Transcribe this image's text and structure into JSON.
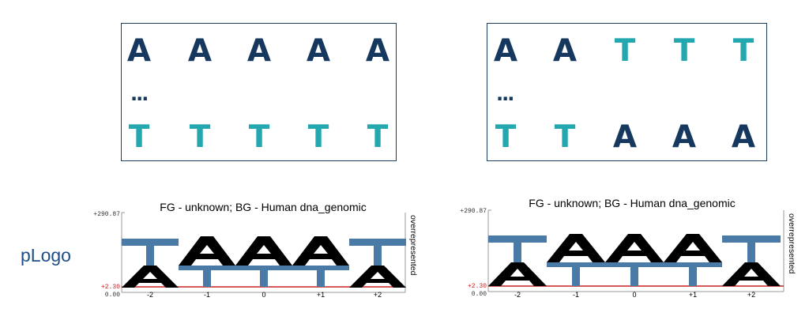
{
  "panels": [
    {
      "rows": [
        [
          "A",
          "A",
          "A",
          "A",
          "A"
        ],
        [
          "T",
          "T",
          "T",
          "T",
          "T"
        ]
      ],
      "ellipsis": "..."
    },
    {
      "rows": [
        [
          "A",
          "A",
          "T",
          "T",
          "T"
        ],
        [
          "T",
          "T",
          "A",
          "A",
          "A"
        ]
      ],
      "ellipsis": "..."
    }
  ],
  "colors": {
    "A_letter": "#17385e",
    "T_letter": "#24a8b0",
    "logo_A": "#000000",
    "logo_T": "#4a7ba7",
    "threshold": "#cc2222",
    "box_border": "#1f3f5f"
  },
  "side_label": "pLogo",
  "logos": [
    {
      "title": "FG - unknown;  BG - Human dna_genomic",
      "y_max_label": "+290.87",
      "threshold_label": "+2.30",
      "zero_label": "0.00",
      "side_text": "overrepresented",
      "positions": [
        "-2",
        "-1",
        "0",
        "+1",
        "+2"
      ],
      "columns": [
        {
          "position": "-2",
          "stack": [
            "T",
            "A"
          ]
        },
        {
          "position": "-1",
          "stack": [
            "A",
            "T"
          ]
        },
        {
          "position": "0",
          "stack": [
            "A",
            "T"
          ]
        },
        {
          "position": "+1",
          "stack": [
            "A",
            "T"
          ]
        },
        {
          "position": "+2",
          "stack": [
            "T",
            "A"
          ]
        }
      ]
    },
    {
      "title": "FG - unknown;  BG - Human dna_genomic",
      "y_max_label": "+290.87",
      "threshold_label": "+2.30",
      "zero_label": "0.00",
      "side_text": "overrepresented",
      "positions": [
        "-2",
        "-1",
        "0",
        "+1",
        "+2"
      ],
      "columns": [
        {
          "position": "-2",
          "stack": [
            "T",
            "A"
          ]
        },
        {
          "position": "-1",
          "stack": [
            "A",
            "T"
          ]
        },
        {
          "position": "0",
          "stack": [
            "A",
            "T"
          ]
        },
        {
          "position": "+1",
          "stack": [
            "A",
            "T"
          ]
        },
        {
          "position": "+2",
          "stack": [
            "T",
            "A"
          ]
        }
      ]
    }
  ]
}
